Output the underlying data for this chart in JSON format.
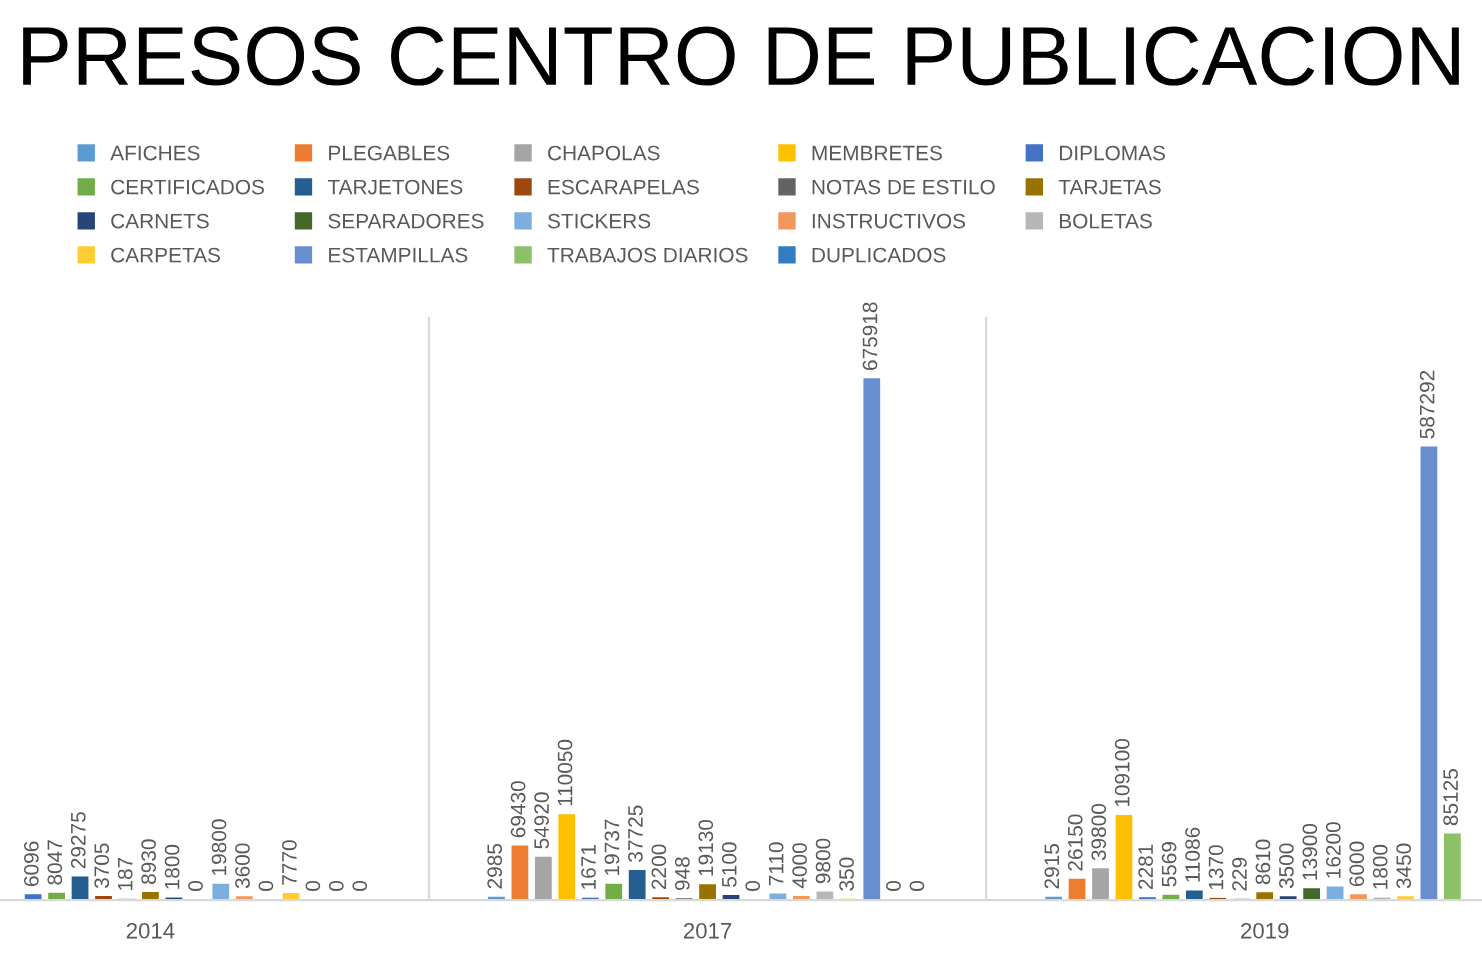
{
  "chart_data": {
    "type": "bar",
    "title": "PRESOS CENTRO DE PUBLICACION",
    "categories": [
      "2014",
      "2017",
      "2019"
    ],
    "series": [
      {
        "name": "AFICHES",
        "color": "#5b9bd5",
        "values": [
          null,
          2985,
          2915
        ]
      },
      {
        "name": "PLEGABLES",
        "color": "#ed7d31",
        "values": [
          null,
          69430,
          26150
        ]
      },
      {
        "name": "CHAPOLAS",
        "color": "#a5a5a5",
        "values": [
          null,
          54920,
          39800
        ]
      },
      {
        "name": "MEMBRETES",
        "color": "#ffc000",
        "values": [
          null,
          110050,
          109100
        ]
      },
      {
        "name": "DIPLOMAS",
        "color": "#4472c4",
        "values": [
          6096,
          1671,
          2281
        ]
      },
      {
        "name": "CERTIFICADOS",
        "color": "#70ad47",
        "values": [
          8047,
          19737,
          5569
        ]
      },
      {
        "name": "TARJETONES",
        "color": "#255e91",
        "values": [
          29275,
          37725,
          11086
        ]
      },
      {
        "name": "ESCARAPELAS",
        "color": "#9e480e",
        "values": [
          3705,
          2200,
          1370
        ]
      },
      {
        "name": "NOTAS DE ESTILO",
        "color": "#636363",
        "values": [
          187,
          948,
          229
        ]
      },
      {
        "name": "TARJETAS",
        "color": "#997300",
        "values": [
          8930,
          19130,
          8610
        ]
      },
      {
        "name": "CARNETS",
        "color": "#264478",
        "values": [
          1800,
          5100,
          3500
        ]
      },
      {
        "name": "SEPARADORES",
        "color": "#43682b",
        "values": [
          0,
          0,
          13900
        ]
      },
      {
        "name": "STICKERS",
        "color": "#7cafdd",
        "values": [
          19800,
          7110,
          16200
        ]
      },
      {
        "name": "INSTRUCTIVOS",
        "color": "#f1975a",
        "values": [
          3600,
          4000,
          6000
        ]
      },
      {
        "name": "BOLETAS",
        "color": "#b7b7b7",
        "values": [
          0,
          9800,
          1800
        ]
      },
      {
        "name": "CARPETAS",
        "color": "#ffcd33",
        "values": [
          7770,
          350,
          3450
        ]
      },
      {
        "name": "ESTAMPILLAS",
        "color": "#698ed0",
        "values": [
          0,
          675918,
          587292
        ]
      },
      {
        "name": "TRABAJOS DIARIOS",
        "color": "#8cc168",
        "values": [
          0,
          0,
          85125
        ]
      },
      {
        "name": "DUPLICADOS",
        "color": "#327dc2",
        "values": [
          0,
          0,
          null
        ]
      }
    ],
    "data_labels": true,
    "legend": "top",
    "grid": "x"
  }
}
